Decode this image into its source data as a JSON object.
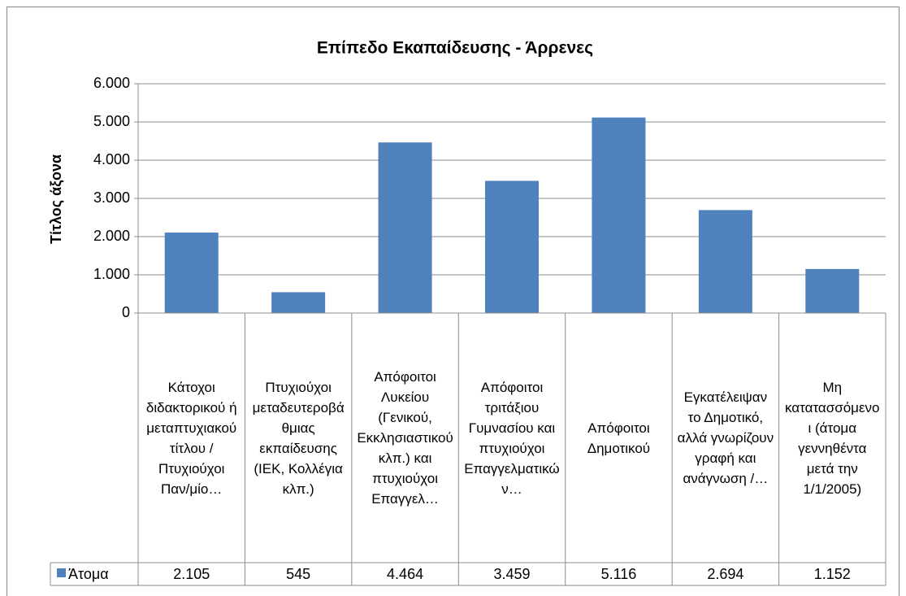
{
  "chart_data": {
    "type": "bar",
    "title": "Επίπεδο Εκαπαίδευσης - Άρρενες",
    "y_label": "Τίτλος άξονα",
    "categories": [
      "Κάτοχοι διδακτορικού ή μεταπτυχιακού τίτλου / Πτυχιούχοι Παν/μίο…",
      "Πτυχιούχοι μεταδευτεροβάθμιας εκπαίδευσης (ΙΕΚ, Κολλέγια κλπ.)",
      "Απόφοιτοι Λυκείου (Γενικού, Εκκλησιαστικού κλπ.) και πτυχιούχοι Επαγγελ…",
      "Απόφοιτοι τριτάξιου Γυμνασίου και πτυχιούχοι Επαγγελματικών…",
      "Απόφοιτοι Δημοτικού",
      "Εγκατέλειψαν το Δημοτικό, αλλά γνωρίζουν γραφή και ανάγνωση /…",
      "Μη κατατασσόμενοι (άτομα γεννηθέντα μετά την 1/1/2005)"
    ],
    "series": [
      {
        "name": "Άτομα",
        "color": "#4f81bd",
        "values": [
          2105,
          545,
          4464,
          3459,
          5116,
          2694,
          1152
        ],
        "value_labels": [
          "2.105",
          "545",
          "4.464",
          "3.459",
          "5.116",
          "2.694",
          "1.152"
        ]
      }
    ],
    "ylim": [
      0,
      6000
    ],
    "yticks": [
      0,
      {
        "value": 1000,
        "label": "1.000"
      },
      {
        "value": 2000,
        "label": "2.000"
      },
      {
        "value": 3000,
        "label": "3.000"
      },
      {
        "value": 4000,
        "label": "4.000"
      },
      {
        "value": 5000,
        "label": "5.000"
      },
      {
        "value": 6000,
        "label": "6.000"
      }
    ],
    "grid": true,
    "data_table": true
  }
}
